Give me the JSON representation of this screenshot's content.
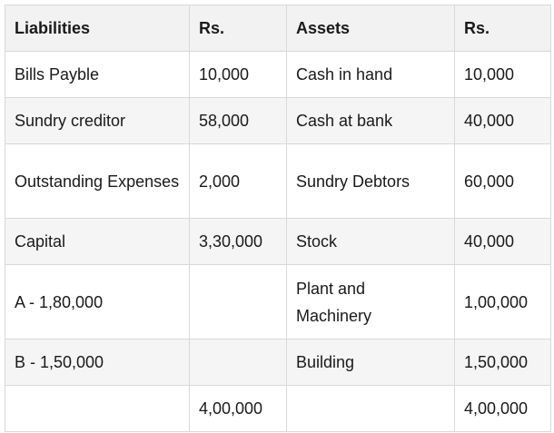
{
  "table": {
    "header": [
      "Liabilities",
      "Rs.",
      "Assets",
      "Rs."
    ],
    "rows": [
      [
        "Bills Payble",
        "10,000",
        "Cash in hand",
        "10,000"
      ],
      [
        "Sundry creditor",
        "58,000",
        "Cash at bank",
        "40,000"
      ],
      [
        "Outstanding Expenses",
        "2,000",
        "Sundry Debtors",
        "60,000"
      ],
      [
        "Capital",
        "3,30,000",
        "Stock",
        "40,000"
      ],
      [
        "A - 1,80,000",
        null,
        "Plant and Machinery",
        "1,00,000"
      ],
      [
        "B - 1,50,000",
        null,
        "Building",
        "1,50,000"
      ],
      [
        null,
        "4,00,000",
        null,
        "4,00,000"
      ]
    ]
  }
}
